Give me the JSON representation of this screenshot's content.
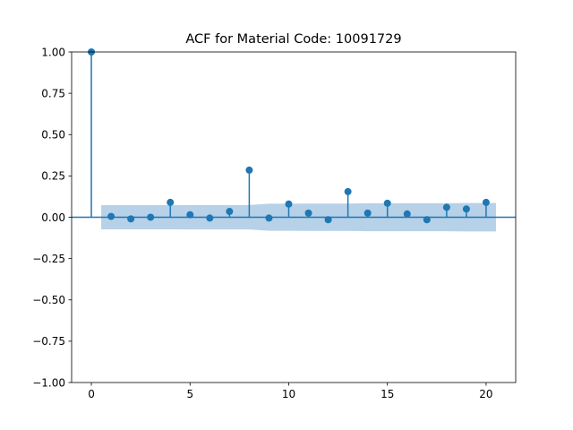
{
  "chart_data": {
    "type": "stem",
    "title": "ACF for Material Code: 10091729",
    "xlabel": "",
    "ylabel": "",
    "xlim": [
      -1,
      21.5
    ],
    "ylim": [
      -1.0,
      1.0
    ],
    "x_ticks": [
      0,
      5,
      10,
      15,
      20
    ],
    "x_tick_labels": [
      "0",
      "5",
      "10",
      "15",
      "20"
    ],
    "y_ticks": [
      -1.0,
      -0.75,
      -0.5,
      -0.25,
      0.0,
      0.25,
      0.5,
      0.75,
      1.0
    ],
    "y_tick_labels": [
      "−1.00",
      "−0.75",
      "−0.50",
      "−0.25",
      "0.00",
      "0.25",
      "0.50",
      "0.75",
      "1.00"
    ],
    "grid": false,
    "series": [
      {
        "lags": [
          0,
          1,
          2,
          3,
          4,
          5,
          6,
          7,
          8,
          9,
          10,
          11,
          12,
          13,
          14,
          15,
          16,
          17,
          18,
          19,
          20
        ],
        "values": [
          1.0,
          0.005,
          -0.01,
          0.0,
          0.09,
          0.015,
          -0.005,
          0.035,
          0.285,
          -0.005,
          0.08,
          0.025,
          -0.015,
          0.155,
          0.025,
          0.085,
          0.02,
          -0.015,
          0.06,
          0.05,
          0.09
        ]
      }
    ],
    "confidence_band": {
      "lags": [
        0.5,
        1,
        2,
        3,
        4,
        5,
        6,
        7,
        8,
        9,
        10,
        11,
        12,
        13,
        14,
        15,
        16,
        17,
        18,
        19,
        20,
        20.5
      ],
      "upper": [
        0.073,
        0.073,
        0.073,
        0.073,
        0.073,
        0.074,
        0.074,
        0.074,
        0.074,
        0.082,
        0.082,
        0.083,
        0.083,
        0.083,
        0.085,
        0.085,
        0.085,
        0.085,
        0.085,
        0.086,
        0.086,
        0.086
      ],
      "lower": [
        -0.073,
        -0.073,
        -0.073,
        -0.073,
        -0.073,
        -0.074,
        -0.074,
        -0.074,
        -0.074,
        -0.082,
        -0.082,
        -0.083,
        -0.083,
        -0.083,
        -0.085,
        -0.085,
        -0.085,
        -0.085,
        -0.085,
        -0.086,
        -0.086,
        -0.086
      ]
    },
    "colors": {
      "stem": "#1f77b4",
      "band": "#b7d1e8",
      "zero_line": "#1f77b4"
    }
  }
}
